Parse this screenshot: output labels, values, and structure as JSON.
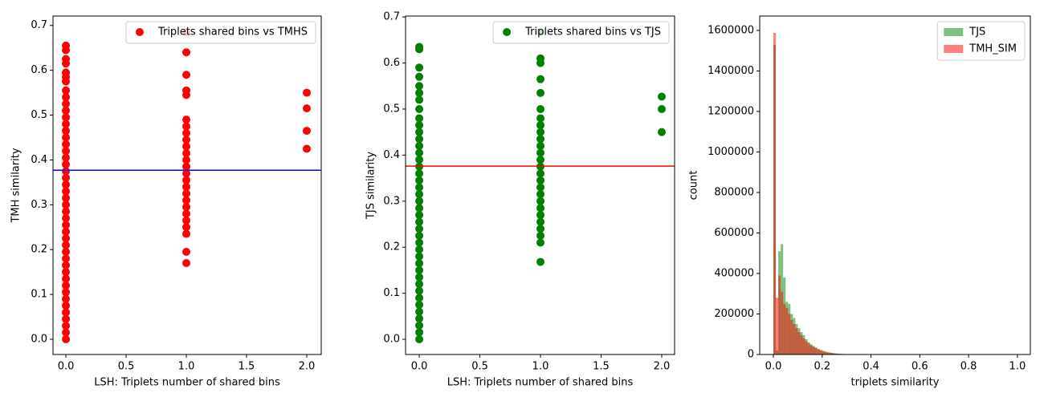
{
  "chart_data": [
    {
      "type": "scatter",
      "xlabel": "LSH: Triplets number of shared bins",
      "ylabel": "TMH similarity",
      "xlim": [
        -0.107,
        2.12
      ],
      "ylim": [
        -0.034,
        0.721
      ],
      "xticks": [
        {
          "value": 0,
          "label": "0.0"
        },
        0.5,
        {
          "value": 1,
          "label": "1.0"
        },
        1.5,
        {
          "value": 2,
          "label": "2.0"
        }
      ],
      "yticks": [
        {
          "value": 0,
          "label": "0.0"
        },
        0.1,
        0.2,
        0.3,
        0.4,
        0.5,
        0.6,
        0.7
      ],
      "legend": "upper right",
      "hline": {
        "y": 0.377,
        "color": "#0000ff"
      },
      "series": [
        {
          "name": "Triplets shared bins vs TMHS",
          "color": "#ff0000",
          "x": [
            0,
            0,
            0,
            0,
            0,
            0,
            0,
            0,
            0,
            0,
            0,
            0,
            0,
            0,
            0,
            0,
            0,
            0,
            0,
            0,
            0,
            0,
            0,
            0,
            0,
            0,
            0,
            0,
            0,
            0,
            0,
            0,
            0,
            0,
            0,
            0,
            0,
            0,
            0,
            0,
            0,
            0,
            0,
            0,
            0,
            1,
            1,
            1,
            1,
            1,
            1,
            1,
            1,
            1,
            1,
            1,
            1,
            1,
            1,
            1,
            1,
            1,
            1,
            1,
            1,
            1,
            1,
            1,
            1,
            1,
            2,
            2,
            2,
            2
          ],
          "y": [
            0,
            0.015,
            0.03,
            0.045,
            0.06,
            0.075,
            0.09,
            0.105,
            0.12,
            0.135,
            0.15,
            0.165,
            0.18,
            0.195,
            0.21,
            0.225,
            0.24,
            0.255,
            0.27,
            0.285,
            0.3,
            0.315,
            0.33,
            0.345,
            0.36,
            0.375,
            0.39,
            0.405,
            0.42,
            0.435,
            0.45,
            0.465,
            0.48,
            0.495,
            0.51,
            0.525,
            0.54,
            0.555,
            0.575,
            0.585,
            0.595,
            0.615,
            0.625,
            0.645,
            0.655,
            0.685,
            0.64,
            0.59,
            0.555,
            0.545,
            0.49,
            0.475,
            0.46,
            0.445,
            0.43,
            0.415,
            0.4,
            0.385,
            0.37,
            0.355,
            0.34,
            0.325,
            0.31,
            0.295,
            0.28,
            0.265,
            0.25,
            0.235,
            0.195,
            0.17,
            0.55,
            0.515,
            0.465,
            0.425
          ]
        }
      ]
    },
    {
      "type": "scatter",
      "xlabel": "LSH: Triplets number of shared bins",
      "ylabel": "TJS similarity",
      "xlim": [
        -0.113,
        2.106
      ],
      "ylim": [
        -0.033,
        0.702
      ],
      "xticks": [
        {
          "value": 0,
          "label": "0.0"
        },
        0.5,
        {
          "value": 1,
          "label": "1.0"
        },
        1.5,
        {
          "value": 2,
          "label": "2.0"
        }
      ],
      "yticks": [
        {
          "value": 0,
          "label": "0.0"
        },
        0.1,
        0.2,
        0.3,
        0.4,
        0.5,
        0.6,
        0.7
      ],
      "legend": "upper right",
      "hline": {
        "y": 0.376,
        "color": "#ff0000"
      },
      "series": [
        {
          "name": "Triplets shared bins vs TJS",
          "color": "#008000",
          "x": [
            0,
            0,
            0,
            0,
            0,
            0,
            0,
            0,
            0,
            0,
            0,
            0,
            0,
            0,
            0,
            0,
            0,
            0,
            0,
            0,
            0,
            0,
            0,
            0,
            0,
            0,
            0,
            0,
            0,
            0,
            0,
            0,
            0,
            0,
            0,
            0,
            0,
            0,
            0,
            0,
            0,
            1,
            1,
            1,
            1,
            1,
            1,
            1,
            1,
            1,
            1,
            1,
            1,
            1,
            1,
            1,
            1,
            1,
            1,
            1,
            1,
            1,
            1,
            1,
            1,
            1,
            1,
            2,
            2,
            2
          ],
          "y": [
            0,
            0.015,
            0.03,
            0.045,
            0.06,
            0.075,
            0.09,
            0.105,
            0.12,
            0.135,
            0.15,
            0.165,
            0.18,
            0.195,
            0.21,
            0.225,
            0.24,
            0.255,
            0.27,
            0.285,
            0.3,
            0.315,
            0.33,
            0.345,
            0.36,
            0.375,
            0.39,
            0.405,
            0.42,
            0.435,
            0.45,
            0.465,
            0.48,
            0.5,
            0.52,
            0.535,
            0.55,
            0.57,
            0.59,
            0.63,
            0.635,
            0.667,
            0.61,
            0.6,
            0.565,
            0.535,
            0.5,
            0.48,
            0.465,
            0.45,
            0.435,
            0.42,
            0.405,
            0.39,
            0.375,
            0.36,
            0.345,
            0.33,
            0.315,
            0.3,
            0.285,
            0.27,
            0.255,
            0.24,
            0.225,
            0.21,
            0.168,
            0.527,
            0.5,
            0.45
          ]
        }
      ]
    },
    {
      "type": "histogram",
      "xlabel": "triplets similarity",
      "ylabel": "count",
      "xlim": [
        -0.056,
        1.053
      ],
      "ylim": [
        0,
        1671000
      ],
      "xticks": [
        {
          "value": 0,
          "label": "0.0"
        },
        0.2,
        0.4,
        0.6,
        0.8,
        {
          "value": 1,
          "label": "1.0"
        }
      ],
      "yticks": [
        0,
        200000,
        400000,
        600000,
        800000,
        1000000,
        1200000,
        1400000,
        1600000
      ],
      "legend": "upper right",
      "bins": [
        0,
        0.01,
        0.02,
        0.03,
        0.04,
        0.05,
        0.06,
        0.07,
        0.08,
        0.09,
        0.1,
        0.11,
        0.12,
        0.13,
        0.14,
        0.15,
        0.16,
        0.17,
        0.18,
        0.19,
        0.2,
        0.21,
        0.22,
        0.23,
        0.24,
        0.25,
        0.26,
        0.27,
        0.28,
        0.29,
        0.3,
        0.31,
        0.32,
        0.33,
        0.34,
        0.35,
        0.36,
        0.37,
        0.38,
        0.39,
        0.4
      ],
      "series": [
        {
          "name": "TJS",
          "color": "#008000",
          "alpha": 0.5,
          "values": [
            1528000,
            20000,
            510000,
            545000,
            380000,
            260000,
            250000,
            200000,
            180000,
            150000,
            130000,
            110000,
            95000,
            75000,
            60000,
            50000,
            42000,
            35000,
            28000,
            22000,
            18000,
            14000,
            11000,
            9000,
            7000,
            5000,
            4000,
            3000,
            2500,
            2000,
            1500,
            1200,
            1000,
            800,
            600,
            500,
            400,
            300,
            200,
            100
          ]
        },
        {
          "name": "TMH_SIM",
          "color": "#ff0000",
          "alpha": 0.5,
          "values": [
            1588000,
            280000,
            390000,
            310000,
            250000,
            230000,
            200000,
            170000,
            150000,
            130000,
            110000,
            95000,
            80000,
            65000,
            55000,
            45000,
            38000,
            30000,
            25000,
            20000,
            16000,
            13000,
            10000,
            8000,
            6000,
            5000,
            4000,
            3000,
            2500,
            2000,
            1500,
            1200,
            1000,
            800,
            600,
            500,
            400,
            300,
            200,
            100
          ]
        }
      ]
    }
  ]
}
